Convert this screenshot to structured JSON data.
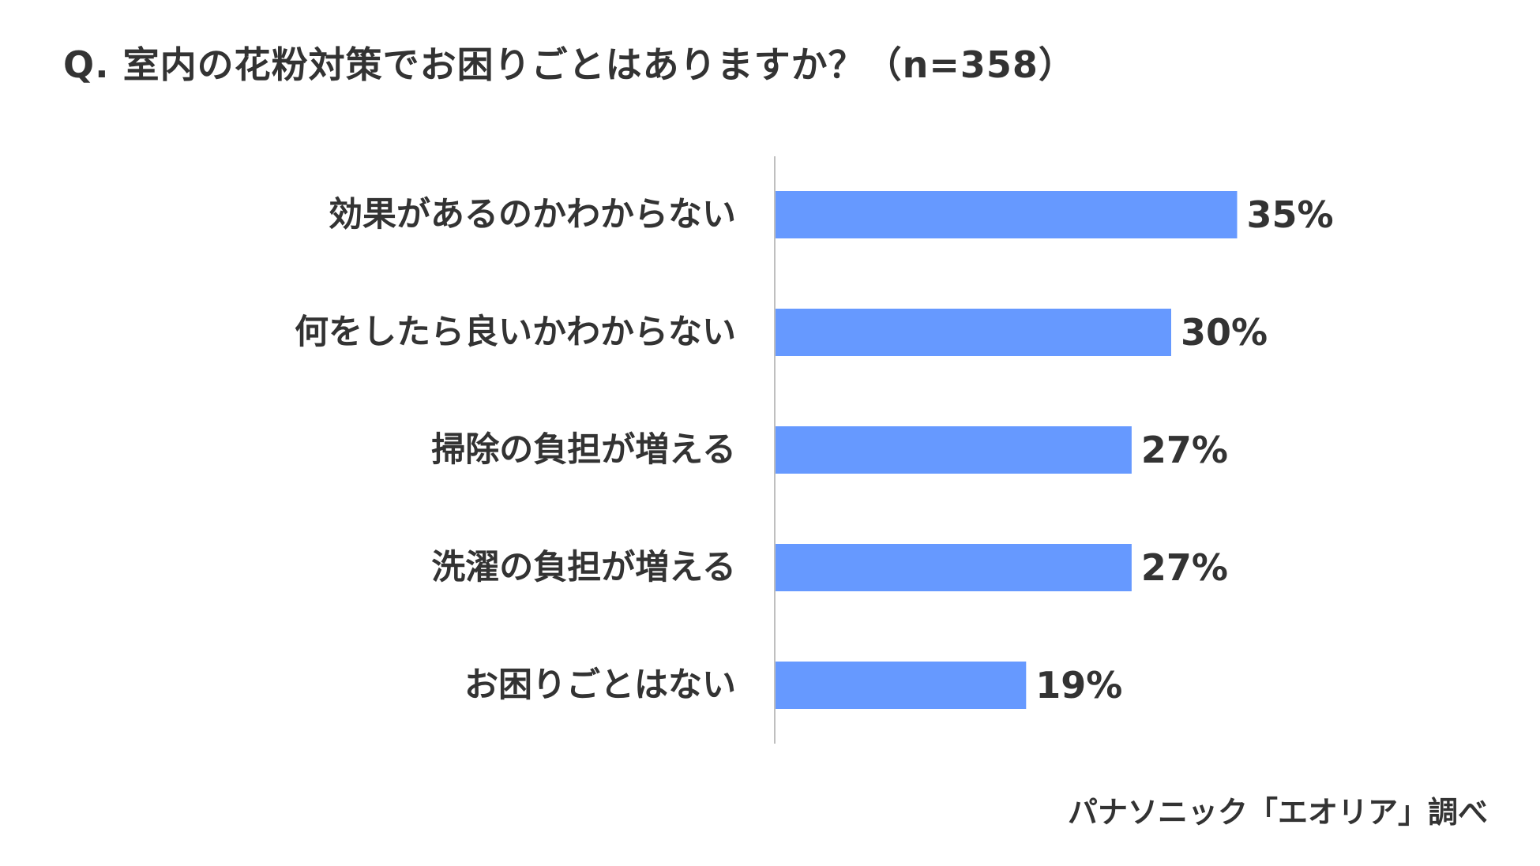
{
  "title": "Q. 室内の花粉対策でお困りごとはありますか？（n=358）",
  "source": "パナソニック「エオリア」調べ",
  "colors": {
    "bar": "#6699FF",
    "axis": "#BFBFBF",
    "text": "#333333"
  },
  "chart_data": {
    "type": "bar",
    "orientation": "horizontal",
    "categories": [
      "効果があるのかわからない",
      "何をしたら良いかわからない",
      "掃除の負担が増える",
      "洗濯の負担が増える",
      "お困りごとはない"
    ],
    "values": [
      35,
      30,
      27,
      27,
      19
    ],
    "value_labels": [
      "35%",
      "30%",
      "27%",
      "27%",
      "19%"
    ],
    "unit": "%",
    "xlim": [
      0,
      100
    ],
    "grid": false,
    "legend": "none"
  }
}
